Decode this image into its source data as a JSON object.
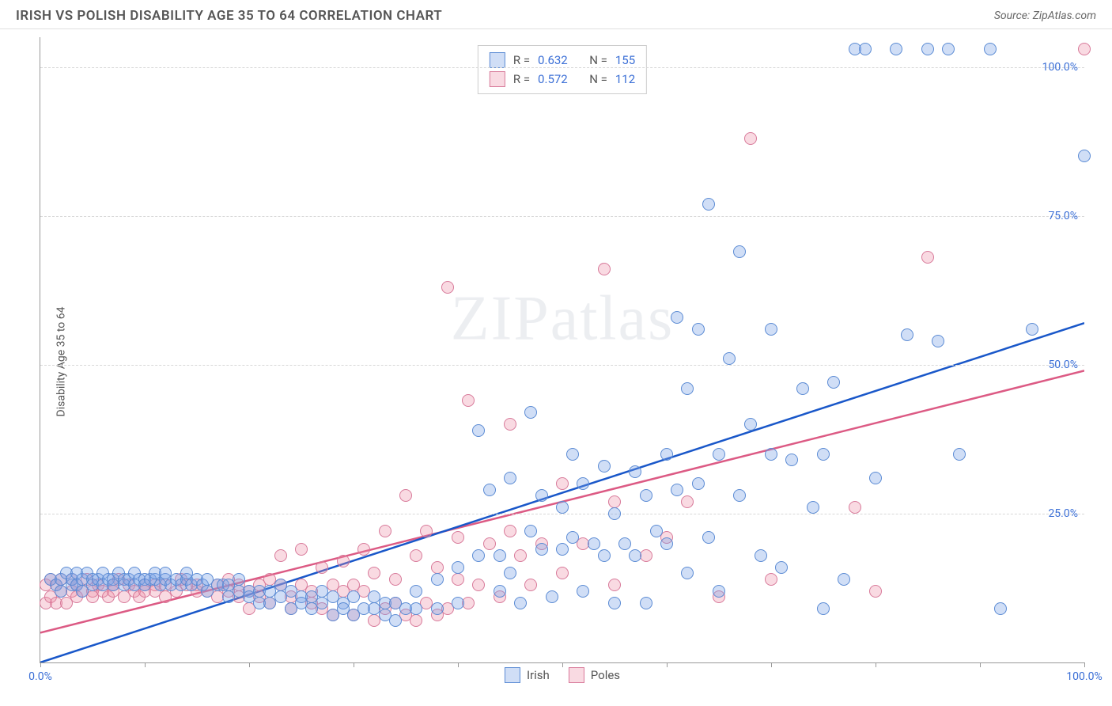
{
  "header": {
    "title": "IRISH VS POLISH DISABILITY AGE 35 TO 64 CORRELATION CHART",
    "source": "Source: ZipAtlas.com"
  },
  "chart": {
    "type": "scatter",
    "ylabel": "Disability Age 35 to 64",
    "watermark": "ZIPatlas",
    "background_color": "#ffffff",
    "grid_color": "#d8d8d8",
    "axis_color": "#999999",
    "tick_label_color": "#3b6fd6",
    "xlim": [
      0,
      100
    ],
    "ylim": [
      0,
      105
    ],
    "xticks": [
      0,
      10,
      20,
      30,
      40,
      50,
      60,
      70,
      80,
      90,
      100
    ],
    "xlabels": {
      "0": "0.0%",
      "100": "100.0%"
    },
    "yticks": [
      25,
      50,
      75,
      100
    ],
    "ylabels": {
      "25": "25.0%",
      "50": "50.0%",
      "75": "75.0%",
      "100": "100.0%"
    },
    "point_radius": 8,
    "point_border_width": 1.5,
    "series": {
      "irish": {
        "label": "Irish",
        "fill": "rgba(120,160,230,0.35)",
        "stroke": "#5b8bd4",
        "trend_color": "#1957c9",
        "trend_width": 2.5,
        "trend": {
          "x1": 0,
          "y1": 0,
          "x2": 100,
          "y2": 57
        },
        "R": "0.632",
        "N": "155",
        "points": [
          [
            1,
            14
          ],
          [
            1.5,
            13
          ],
          [
            2,
            14
          ],
          [
            2,
            12
          ],
          [
            2.5,
            15
          ],
          [
            3,
            13
          ],
          [
            3,
            14
          ],
          [
            3.5,
            15
          ],
          [
            3.5,
            13
          ],
          [
            4,
            14
          ],
          [
            4,
            12
          ],
          [
            4.5,
            15
          ],
          [
            5,
            14
          ],
          [
            5,
            13
          ],
          [
            5.5,
            14
          ],
          [
            6,
            15
          ],
          [
            6,
            13
          ],
          [
            6.5,
            14
          ],
          [
            7,
            14
          ],
          [
            7,
            13
          ],
          [
            7.5,
            15
          ],
          [
            8,
            14
          ],
          [
            8,
            13
          ],
          [
            8.5,
            14
          ],
          [
            9,
            15
          ],
          [
            9,
            13
          ],
          [
            9.5,
            14
          ],
          [
            10,
            14
          ],
          [
            10,
            13
          ],
          [
            10.5,
            14
          ],
          [
            11,
            14
          ],
          [
            11,
            15
          ],
          [
            11.5,
            13
          ],
          [
            12,
            14
          ],
          [
            12,
            15
          ],
          [
            12.5,
            13
          ],
          [
            13,
            14
          ],
          [
            13.5,
            13
          ],
          [
            14,
            14
          ],
          [
            14,
            15
          ],
          [
            14.5,
            13
          ],
          [
            15,
            14
          ],
          [
            15.5,
            13
          ],
          [
            16,
            14
          ],
          [
            16,
            12
          ],
          [
            17,
            13
          ],
          [
            17.5,
            13
          ],
          [
            18,
            13
          ],
          [
            18,
            11
          ],
          [
            19,
            12
          ],
          [
            19,
            14
          ],
          [
            20,
            12
          ],
          [
            20,
            11
          ],
          [
            21,
            12
          ],
          [
            21,
            10
          ],
          [
            22,
            12
          ],
          [
            22,
            10
          ],
          [
            23,
            11
          ],
          [
            23,
            13
          ],
          [
            24,
            12
          ],
          [
            24,
            9
          ],
          [
            25,
            11
          ],
          [
            25,
            10
          ],
          [
            26,
            11
          ],
          [
            26,
            9
          ],
          [
            27,
            12
          ],
          [
            27,
            10
          ],
          [
            28,
            11
          ],
          [
            28,
            8
          ],
          [
            29,
            10
          ],
          [
            29,
            9
          ],
          [
            30,
            11
          ],
          [
            30,
            8
          ],
          [
            31,
            9
          ],
          [
            32,
            9
          ],
          [
            32,
            11
          ],
          [
            33,
            10
          ],
          [
            33,
            8
          ],
          [
            34,
            10
          ],
          [
            34,
            7
          ],
          [
            35,
            9
          ],
          [
            36,
            9
          ],
          [
            36,
            12
          ],
          [
            38,
            9
          ],
          [
            38,
            14
          ],
          [
            40,
            16
          ],
          [
            40,
            10
          ],
          [
            42,
            39
          ],
          [
            42,
            18
          ],
          [
            43,
            29
          ],
          [
            44,
            12
          ],
          [
            44,
            18
          ],
          [
            45,
            15
          ],
          [
            45,
            31
          ],
          [
            46,
            10
          ],
          [
            47,
            22
          ],
          [
            47,
            42
          ],
          [
            48,
            19
          ],
          [
            48,
            28
          ],
          [
            49,
            11
          ],
          [
            50,
            26
          ],
          [
            50,
            19
          ],
          [
            51,
            35
          ],
          [
            51,
            21
          ],
          [
            52,
            30
          ],
          [
            52,
            12
          ],
          [
            53,
            20
          ],
          [
            54,
            18
          ],
          [
            54,
            33
          ],
          [
            55,
            10
          ],
          [
            55,
            25
          ],
          [
            56,
            20
          ],
          [
            57,
            32
          ],
          [
            57,
            18
          ],
          [
            58,
            28
          ],
          [
            58,
            10
          ],
          [
            59,
            22
          ],
          [
            60,
            35
          ],
          [
            60,
            20
          ],
          [
            61,
            29
          ],
          [
            61,
            58
          ],
          [
            62,
            15
          ],
          [
            62,
            46
          ],
          [
            63,
            56
          ],
          [
            63,
            30
          ],
          [
            64,
            21
          ],
          [
            64,
            77
          ],
          [
            65,
            35
          ],
          [
            65,
            12
          ],
          [
            66,
            51
          ],
          [
            67,
            69
          ],
          [
            67,
            28
          ],
          [
            68,
            40
          ],
          [
            69,
            18
          ],
          [
            70,
            56
          ],
          [
            70,
            35
          ],
          [
            71,
            16
          ],
          [
            72,
            34
          ],
          [
            73,
            46
          ],
          [
            74,
            26
          ],
          [
            75,
            35
          ],
          [
            75,
            9
          ],
          [
            76,
            47
          ],
          [
            77,
            14
          ],
          [
            78,
            103
          ],
          [
            79,
            103
          ],
          [
            80,
            31
          ],
          [
            82,
            103
          ],
          [
            83,
            55
          ],
          [
            85,
            103
          ],
          [
            86,
            54
          ],
          [
            87,
            103
          ],
          [
            88,
            35
          ],
          [
            91,
            103
          ],
          [
            92,
            9
          ],
          [
            95,
            56
          ],
          [
            100,
            85
          ]
        ]
      },
      "poles": {
        "label": "Poles",
        "fill": "rgba(235,140,165,0.32)",
        "stroke": "#d87a9a",
        "trend_color": "#dc5a84",
        "trend_width": 2.5,
        "trend": {
          "x1": 0,
          "y1": 5,
          "x2": 100,
          "y2": 49
        },
        "R": "0.572",
        "N": "112",
        "points": [
          [
            0.5,
            13
          ],
          [
            0.5,
            10
          ],
          [
            1,
            14
          ],
          [
            1,
            11
          ],
          [
            1.5,
            13
          ],
          [
            1.5,
            10
          ],
          [
            2,
            12
          ],
          [
            2,
            14
          ],
          [
            2.5,
            10
          ],
          [
            3,
            12
          ],
          [
            3,
            14
          ],
          [
            3.5,
            13
          ],
          [
            3.5,
            11
          ],
          [
            4,
            12
          ],
          [
            4.5,
            14
          ],
          [
            5,
            12
          ],
          [
            5,
            11
          ],
          [
            5.5,
            13
          ],
          [
            6,
            12
          ],
          [
            6.5,
            11
          ],
          [
            7,
            13
          ],
          [
            7,
            12
          ],
          [
            7.5,
            14
          ],
          [
            8,
            11
          ],
          [
            8.5,
            13
          ],
          [
            9,
            12
          ],
          [
            9.5,
            11
          ],
          [
            10,
            13
          ],
          [
            10,
            12
          ],
          [
            11,
            13
          ],
          [
            11,
            12
          ],
          [
            12,
            11
          ],
          [
            12,
            13
          ],
          [
            13,
            12
          ],
          [
            13.5,
            14
          ],
          [
            14,
            13
          ],
          [
            15,
            12
          ],
          [
            15,
            13
          ],
          [
            16,
            12
          ],
          [
            17,
            11
          ],
          [
            17,
            13
          ],
          [
            18,
            12
          ],
          [
            18,
            14
          ],
          [
            19,
            11
          ],
          [
            19,
            13
          ],
          [
            20,
            12
          ],
          [
            20,
            9
          ],
          [
            21,
            11
          ],
          [
            21,
            13
          ],
          [
            22,
            14
          ],
          [
            22,
            10
          ],
          [
            23,
            13
          ],
          [
            23,
            18
          ],
          [
            24,
            11
          ],
          [
            24,
            9
          ],
          [
            25,
            13
          ],
          [
            25,
            19
          ],
          [
            26,
            10
          ],
          [
            26,
            12
          ],
          [
            27,
            9
          ],
          [
            27,
            16
          ],
          [
            28,
            13
          ],
          [
            28,
            8
          ],
          [
            29,
            12
          ],
          [
            29,
            17
          ],
          [
            30,
            13
          ],
          [
            30,
            8
          ],
          [
            31,
            12
          ],
          [
            31,
            19
          ],
          [
            32,
            7
          ],
          [
            32,
            15
          ],
          [
            33,
            9
          ],
          [
            33,
            22
          ],
          [
            34,
            10
          ],
          [
            34,
            14
          ],
          [
            35,
            8
          ],
          [
            35,
            28
          ],
          [
            36,
            7
          ],
          [
            36,
            18
          ],
          [
            37,
            10
          ],
          [
            37,
            22
          ],
          [
            38,
            8
          ],
          [
            38,
            16
          ],
          [
            39,
            63
          ],
          [
            39,
            9
          ],
          [
            40,
            14
          ],
          [
            40,
            21
          ],
          [
            41,
            44
          ],
          [
            41,
            10
          ],
          [
            42,
            13
          ],
          [
            43,
            20
          ],
          [
            44,
            11
          ],
          [
            45,
            22
          ],
          [
            45,
            40
          ],
          [
            46,
            18
          ],
          [
            47,
            13
          ],
          [
            48,
            20
          ],
          [
            50,
            30
          ],
          [
            50,
            15
          ],
          [
            52,
            20
          ],
          [
            54,
            66
          ],
          [
            55,
            13
          ],
          [
            55,
            27
          ],
          [
            58,
            18
          ],
          [
            60,
            21
          ],
          [
            62,
            27
          ],
          [
            65,
            11
          ],
          [
            68,
            88
          ],
          [
            70,
            14
          ],
          [
            78,
            26
          ],
          [
            80,
            12
          ],
          [
            85,
            68
          ],
          [
            100,
            103
          ]
        ]
      }
    },
    "stats_box": {
      "rows": [
        {
          "swatch": "irish",
          "r_label": "R =",
          "r_val": "0.632",
          "n_label": "N =",
          "n_val": "155"
        },
        {
          "swatch": "poles",
          "r_label": "R =",
          "r_val": "0.572",
          "n_label": "N =",
          "n_val": "112"
        }
      ]
    },
    "legend": [
      {
        "swatch": "irish",
        "label": "Irish"
      },
      {
        "swatch": "poles",
        "label": "Poles"
      }
    ]
  }
}
